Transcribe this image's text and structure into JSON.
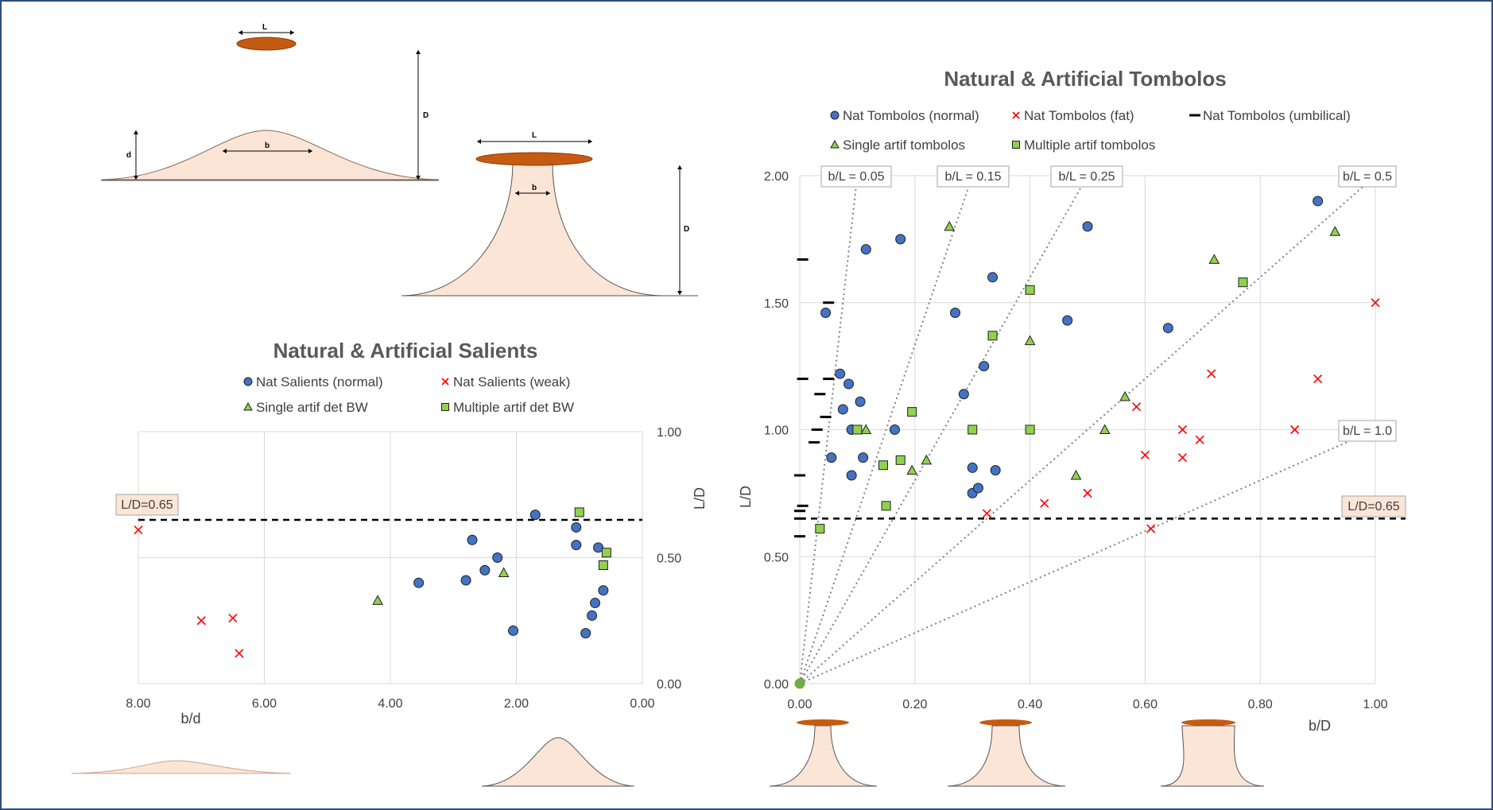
{
  "colors": {
    "blue": "#4472c4",
    "red": "#ff0000",
    "green": "#92d050",
    "sand": "#fbe5d6",
    "breakwater": "#c55a11",
    "grid": "#d9d9d9",
    "frame": "#2f4d7a"
  },
  "diagram_labels": {
    "salient_L": "L",
    "salient_b": "b",
    "salient_d": "d",
    "salient_D": "D",
    "tombolo_L": "L",
    "tombolo_b": "b",
    "tombolo_D": "D"
  },
  "chart_data": [
    {
      "type": "scatter",
      "title": "Natural & Artificial Salients",
      "xlabel": "b/d",
      "ylabel": "L/D",
      "xlim": [
        8,
        0
      ],
      "x_reversed": true,
      "ylim": [
        0,
        1
      ],
      "x_ticks": [
        "8.00",
        "6.00",
        "4.00",
        "2.00",
        "0.00"
      ],
      "y_ticks": [
        "0.00",
        "0.50",
        "1.00"
      ],
      "y_axis_side": "right",
      "grid": true,
      "legend_position": "top",
      "reference_line": {
        "y": 0.65,
        "label": "L/D=0.65"
      },
      "series": [
        {
          "name": "Nat Salients (normal)",
          "marker": "circle",
          "points": [
            [
              3.55,
              0.4
            ],
            [
              2.8,
              0.41
            ],
            [
              2.7,
              0.57
            ],
            [
              2.5,
              0.45
            ],
            [
              2.3,
              0.5
            ],
            [
              2.05,
              0.21
            ],
            [
              1.7,
              0.67
            ],
            [
              1.05,
              0.55
            ],
            [
              1.05,
              0.62
            ],
            [
              0.9,
              0.2
            ],
            [
              0.8,
              0.27
            ],
            [
              0.75,
              0.32
            ],
            [
              0.7,
              0.54
            ],
            [
              0.62,
              0.37
            ]
          ]
        },
        {
          "name": "Nat Salients (weak)",
          "marker": "x",
          "points": [
            [
              8.0,
              0.61
            ],
            [
              7.0,
              0.25
            ],
            [
              6.5,
              0.26
            ],
            [
              6.4,
              0.12
            ]
          ]
        },
        {
          "name": "Single artif det BW",
          "marker": "triangle",
          "points": [
            [
              4.2,
              0.33
            ],
            [
              2.2,
              0.44
            ]
          ]
        },
        {
          "name": "Multiple artif det BW",
          "marker": "square",
          "points": [
            [
              1.0,
              0.68
            ],
            [
              0.62,
              0.47
            ],
            [
              0.57,
              0.52
            ]
          ]
        }
      ]
    },
    {
      "type": "scatter",
      "title": "Natural & Artificial Tombolos",
      "xlabel": "b/D",
      "ylabel": "L/D",
      "xlim": [
        0,
        1
      ],
      "ylim": [
        0,
        2
      ],
      "x_ticks": [
        "0.00",
        "0.20",
        "0.40",
        "0.60",
        "0.80",
        "1.00"
      ],
      "y_ticks": [
        "0.00",
        "0.50",
        "1.00",
        "1.50",
        "2.00"
      ],
      "grid": true,
      "legend_position": "top",
      "reference_line": {
        "y": 0.65,
        "label": "L/D=0.65"
      },
      "ratio_lines": [
        {
          "b_over_L": 0.05,
          "label": "b/L = 0.05"
        },
        {
          "b_over_L": 0.15,
          "label": "b/L = 0.15"
        },
        {
          "b_over_L": 0.25,
          "label": "b/L = 0.25"
        },
        {
          "b_over_L": 0.5,
          "label": "b/L = 0.5"
        },
        {
          "b_over_L": 1.0,
          "label": "b/L = 1.0"
        }
      ],
      "series": [
        {
          "name": "Nat Tombolos (normal)",
          "marker": "circle",
          "points": [
            [
              0.045,
              1.46
            ],
            [
              0.055,
              0.89
            ],
            [
              0.07,
              1.22
            ],
            [
              0.075,
              1.08
            ],
            [
              0.085,
              1.18
            ],
            [
              0.09,
              1.0
            ],
            [
              0.09,
              0.82
            ],
            [
              0.105,
              1.11
            ],
            [
              0.11,
              0.89
            ],
            [
              0.115,
              1.71
            ],
            [
              0.165,
              1.0
            ],
            [
              0.175,
              1.75
            ],
            [
              0.27,
              1.46
            ],
            [
              0.285,
              1.14
            ],
            [
              0.3,
              0.85
            ],
            [
              0.3,
              0.75
            ],
            [
              0.31,
              0.77
            ],
            [
              0.32,
              1.25
            ],
            [
              0.335,
              1.6
            ],
            [
              0.34,
              0.84
            ],
            [
              0.465,
              1.43
            ],
            [
              0.5,
              1.8
            ],
            [
              0.64,
              1.4
            ],
            [
              0.9,
              1.9
            ]
          ]
        },
        {
          "name": "Nat Tombolos (fat)",
          "marker": "x",
          "points": [
            [
              0.325,
              0.67
            ],
            [
              0.425,
              0.71
            ],
            [
              0.5,
              0.75
            ],
            [
              0.585,
              1.09
            ],
            [
              0.6,
              0.9
            ],
            [
              0.61,
              0.61
            ],
            [
              0.665,
              0.89
            ],
            [
              0.665,
              1.0
            ],
            [
              0.695,
              0.96
            ],
            [
              0.715,
              1.22
            ],
            [
              0.86,
              1.0
            ],
            [
              0.9,
              1.2
            ],
            [
              1.0,
              1.5
            ]
          ]
        },
        {
          "name": "Nat Tombolos (umbilical)",
          "marker": "dash",
          "points": [
            [
              0.0,
              0.58
            ],
            [
              0.0,
              0.65
            ],
            [
              0.0,
              0.68
            ],
            [
              0.005,
              0.7
            ],
            [
              0.0,
              0.82
            ],
            [
              0.005,
              1.2
            ],
            [
              0.005,
              1.67
            ],
            [
              0.025,
              0.95
            ],
            [
              0.03,
              1.0
            ],
            [
              0.035,
              1.14
            ],
            [
              0.045,
              1.05
            ],
            [
              0.05,
              1.2
            ],
            [
              0.05,
              1.5
            ]
          ]
        },
        {
          "name": "Single artif tombolos",
          "marker": "triangle",
          "points": [
            [
              0.115,
              1.0
            ],
            [
              0.195,
              0.84
            ],
            [
              0.22,
              0.88
            ],
            [
              0.26,
              1.8
            ],
            [
              0.4,
              1.35
            ],
            [
              0.48,
              0.82
            ],
            [
              0.53,
              1.0
            ],
            [
              0.565,
              1.13
            ],
            [
              0.72,
              1.67
            ],
            [
              0.93,
              1.78
            ]
          ]
        },
        {
          "name": "Multiple artif tombolos",
          "marker": "square",
          "points": [
            [
              0.035,
              0.61
            ],
            [
              0.1,
              1.0
            ],
            [
              0.145,
              0.86
            ],
            [
              0.15,
              0.7
            ],
            [
              0.175,
              0.88
            ],
            [
              0.195,
              1.07
            ],
            [
              0.3,
              1.0
            ],
            [
              0.335,
              1.37
            ],
            [
              0.4,
              1.55
            ],
            [
              0.4,
              1.0
            ],
            [
              0.77,
              1.58
            ]
          ]
        }
      ],
      "origin_point": {
        "x": 0,
        "y": 0
      }
    }
  ]
}
